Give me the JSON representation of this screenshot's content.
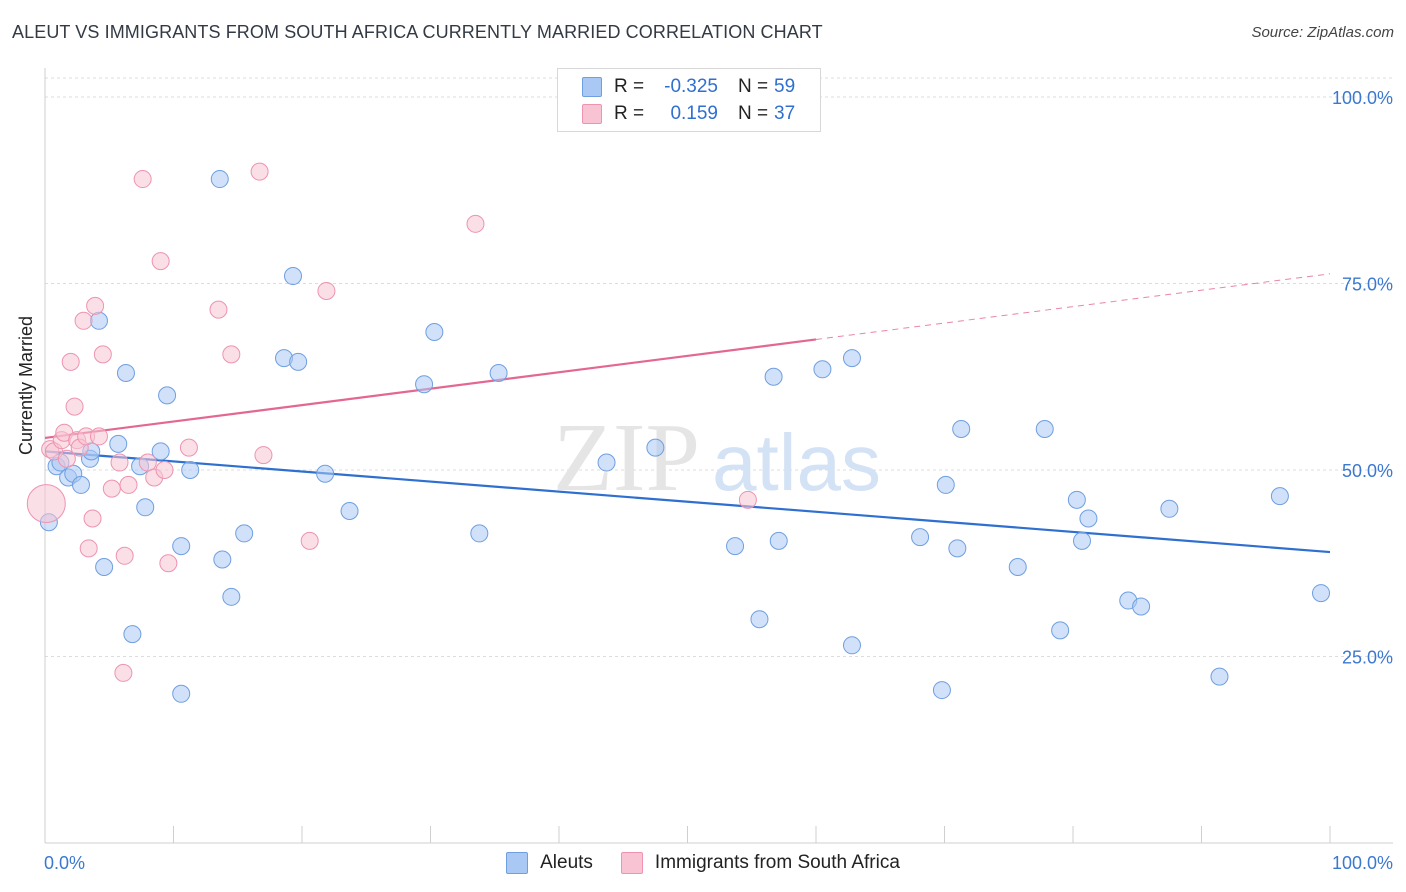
{
  "title": "ALEUT VS IMMIGRANTS FROM SOUTH AFRICA CURRENTLY MARRIED CORRELATION CHART",
  "source": "Source: ZipAtlas.com",
  "watermark": {
    "zip": "ZIP",
    "atlas": "atlas"
  },
  "legend": {
    "r_label": "R =",
    "n_label": "N =",
    "rows": [
      {
        "r": "-0.325",
        "n": "59",
        "color": "#aac8f4"
      },
      {
        "r": "0.159",
        "n": "37",
        "color": "#f8bcd0"
      }
    ]
  },
  "bottom_legend": [
    "Aleuts",
    "Immigrants from South Africa"
  ],
  "colors": {
    "blue_fill": "#aac8f4",
    "blue_stroke": "#6f9fe0",
    "blue_line": "#2f6fd0",
    "pink_fill": "#f8c4d4",
    "pink_stroke": "#ee93b0",
    "pink_line": "#e36791",
    "tick_label": "#3b78d0",
    "grid": "#dcdcdc"
  },
  "chart_data": {
    "type": "scatter",
    "title": "ALEUT VS IMMIGRANTS FROM SOUTH AFRICA CURRENTLY MARRIED CORRELATION CHART",
    "xlabel": "",
    "ylabel": "Currently Married",
    "xlim": [
      0,
      100
    ],
    "ylim": [
      0,
      102
    ],
    "x_tick_labels": [
      "0.0%",
      "100.0%"
    ],
    "y_ticks": [
      25,
      50,
      75,
      100
    ],
    "y_tick_labels": [
      "25.0%",
      "50.0%",
      "75.0%",
      "100.0%"
    ],
    "grid": true,
    "legend_position": "top-center",
    "series": [
      {
        "name": "Aleuts",
        "r": -0.325,
        "n": 59,
        "trend": {
          "x": [
            0,
            100
          ],
          "y": [
            52.5,
            39.0
          ],
          "solid_to": 100
        },
        "points": [
          [
            0.3,
            43.0
          ],
          [
            0.9,
            50.5
          ],
          [
            1.2,
            51.0
          ],
          [
            1.8,
            49.0
          ],
          [
            2.2,
            49.5
          ],
          [
            2.8,
            48.0
          ],
          [
            3.5,
            51.5
          ],
          [
            3.6,
            52.5
          ],
          [
            4.2,
            70.0
          ],
          [
            4.6,
            37.0
          ],
          [
            5.7,
            53.5
          ],
          [
            6.3,
            63.0
          ],
          [
            6.8,
            28.0
          ],
          [
            7.4,
            50.5
          ],
          [
            7.8,
            45.0
          ],
          [
            9.0,
            52.5
          ],
          [
            9.5,
            60.0
          ],
          [
            10.6,
            39.8
          ],
          [
            10.6,
            20.0
          ],
          [
            11.3,
            50.0
          ],
          [
            13.6,
            89.0
          ],
          [
            13.8,
            38.0
          ],
          [
            14.5,
            33.0
          ],
          [
            15.5,
            41.5
          ],
          [
            18.6,
            65.0
          ],
          [
            19.3,
            76.0
          ],
          [
            19.7,
            64.5
          ],
          [
            21.8,
            49.5
          ],
          [
            23.7,
            44.5
          ],
          [
            29.5,
            61.5
          ],
          [
            30.3,
            68.5
          ],
          [
            33.8,
            41.5
          ],
          [
            35.3,
            63.0
          ],
          [
            43.7,
            51.0
          ],
          [
            47.5,
            53.0
          ],
          [
            53.7,
            39.8
          ],
          [
            55.6,
            30.0
          ],
          [
            56.7,
            62.5
          ],
          [
            57.1,
            40.5
          ],
          [
            60.5,
            63.5
          ],
          [
            62.8,
            65.0
          ],
          [
            62.8,
            26.5
          ],
          [
            68.1,
            41.0
          ],
          [
            69.8,
            20.5
          ],
          [
            70.1,
            48.0
          ],
          [
            71.0,
            39.5
          ],
          [
            71.3,
            55.5
          ],
          [
            75.7,
            37.0
          ],
          [
            77.8,
            55.5
          ],
          [
            79.0,
            28.5
          ],
          [
            80.3,
            46.0
          ],
          [
            80.7,
            40.5
          ],
          [
            81.2,
            43.5
          ],
          [
            84.3,
            32.5
          ],
          [
            85.3,
            31.7
          ],
          [
            87.5,
            44.8
          ],
          [
            91.4,
            22.3
          ],
          [
            96.1,
            46.5
          ],
          [
            99.3,
            33.5
          ]
        ]
      },
      {
        "name": "Immigrants from South Africa",
        "r": 0.159,
        "n": 37,
        "trend": {
          "x": [
            0,
            100
          ],
          "y": [
            54.3,
            76.3
          ],
          "solid_to": 60
        },
        "points": [
          [
            0.1,
            45.5
          ],
          [
            0.4,
            52.8
          ],
          [
            0.7,
            52.5
          ],
          [
            1.3,
            54.0
          ],
          [
            1.5,
            55.0
          ],
          [
            1.7,
            51.5
          ],
          [
            2.0,
            64.5
          ],
          [
            2.3,
            58.5
          ],
          [
            2.5,
            54.0
          ],
          [
            2.7,
            53.0
          ],
          [
            3.0,
            70.0
          ],
          [
            3.2,
            54.5
          ],
          [
            3.4,
            39.5
          ],
          [
            3.7,
            43.5
          ],
          [
            3.9,
            72.0
          ],
          [
            4.2,
            54.5
          ],
          [
            4.5,
            65.5
          ],
          [
            5.2,
            47.5
          ],
          [
            5.8,
            51.0
          ],
          [
            6.2,
            38.5
          ],
          [
            6.5,
            48.0
          ],
          [
            6.1,
            22.8
          ],
          [
            7.6,
            89.0
          ],
          [
            8.0,
            51.0
          ],
          [
            8.5,
            49.0
          ],
          [
            9.0,
            78.0
          ],
          [
            9.3,
            50.0
          ],
          [
            9.6,
            37.5
          ],
          [
            11.2,
            53.0
          ],
          [
            13.5,
            71.5
          ],
          [
            14.5,
            65.5
          ],
          [
            16.7,
            90.0
          ],
          [
            17.0,
            52.0
          ],
          [
            20.6,
            40.5
          ],
          [
            21.9,
            74.0
          ],
          [
            33.5,
            83.0
          ],
          [
            54.7,
            46.0
          ]
        ]
      }
    ]
  }
}
